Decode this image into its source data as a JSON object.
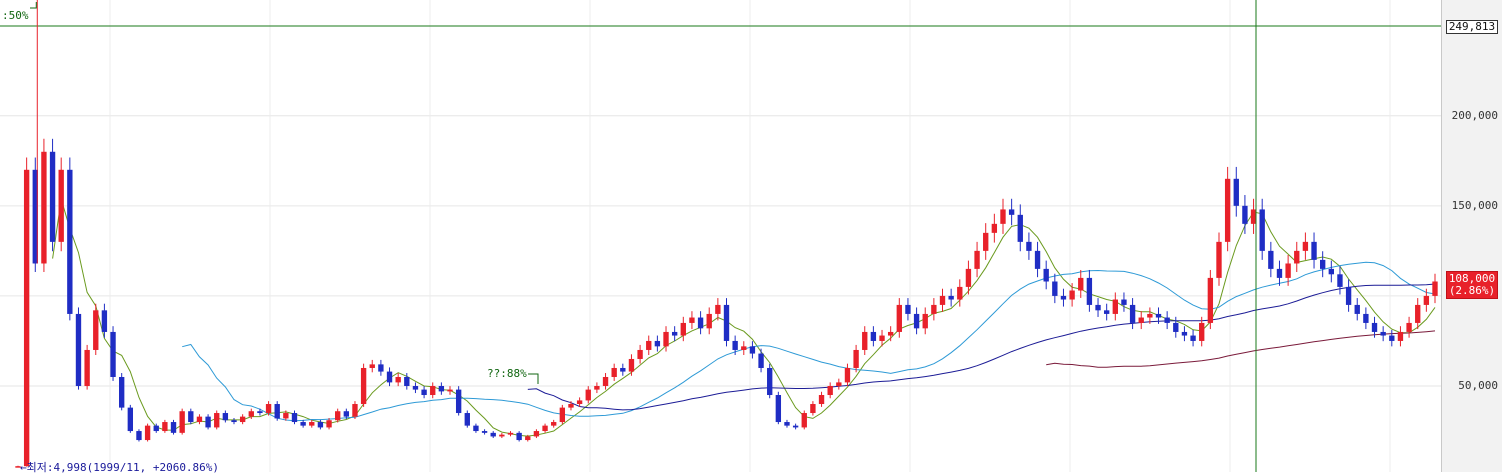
{
  "chart_data": {
    "type": "candlestick",
    "y_axis": {
      "ticks": [
        {
          "value": 200000,
          "label": "200,000"
        },
        {
          "value": 150000,
          "label": "150,000"
        },
        {
          "value": 100000,
          "label": ""
        },
        {
          "value": 50000,
          "label": "50,000"
        }
      ],
      "ylim": [
        5000,
        255000
      ]
    },
    "reference_line": {
      "value": 249813,
      "label": "249,813"
    },
    "current_price": {
      "value": 108000,
      "label": "108,000",
      "change": "(2.86%)"
    },
    "annotations": {
      "high_marker": ":50%",
      "mid_marker": "??:88%",
      "low_marker": "←최저:4,998(1999/11, +2060.86%)"
    },
    "prices_close": [
      5500,
      170000,
      118000,
      180000,
      130000,
      170000,
      90000,
      50000,
      70000,
      92000,
      80000,
      55000,
      38000,
      25000,
      20000,
      28000,
      25000,
      30000,
      24000,
      36000,
      30000,
      33000,
      27000,
      35000,
      31000,
      30000,
      33000,
      36000,
      35000,
      40000,
      32000,
      35000,
      30000,
      28000,
      30000,
      27000,
      31000,
      36000,
      33000,
      40000,
      60000,
      62000,
      58000,
      52000,
      55000,
      50000,
      48000,
      45000,
      50000,
      47000,
      48000,
      35000,
      28000,
      25000,
      24000,
      22000,
      23000,
      24000,
      20000,
      22000,
      25000,
      28000,
      30000,
      38000,
      40000,
      42000,
      48000,
      50000,
      55000,
      60000,
      58000,
      65000,
      70000,
      75000,
      72000,
      80000,
      78000,
      85000,
      88000,
      82000,
      90000,
      95000,
      75000,
      70000,
      72000,
      68000,
      60000,
      45000,
      30000,
      28000,
      27000,
      35000,
      40000,
      45000,
      50000,
      52000,
      60000,
      70000,
      80000,
      75000,
      78000,
      80000,
      95000,
      90000,
      82000,
      90000,
      95000,
      100000,
      98000,
      105000,
      115000,
      125000,
      135000,
      140000,
      148000,
      145000,
      130000,
      125000,
      115000,
      108000,
      100000,
      98000,
      103000,
      110000,
      95000,
      92000,
      90000,
      98000,
      95000,
      85000,
      88000,
      90000,
      88000,
      85000,
      80000,
      78000,
      75000,
      85000,
      110000,
      130000,
      165000,
      150000,
      140000,
      148000,
      125000,
      115000,
      110000,
      118000,
      125000,
      130000,
      120000,
      115000,
      112000,
      105000,
      95000,
      90000,
      85000,
      80000,
      78000,
      75000,
      80000,
      85000,
      95000,
      100000,
      108000
    ]
  }
}
